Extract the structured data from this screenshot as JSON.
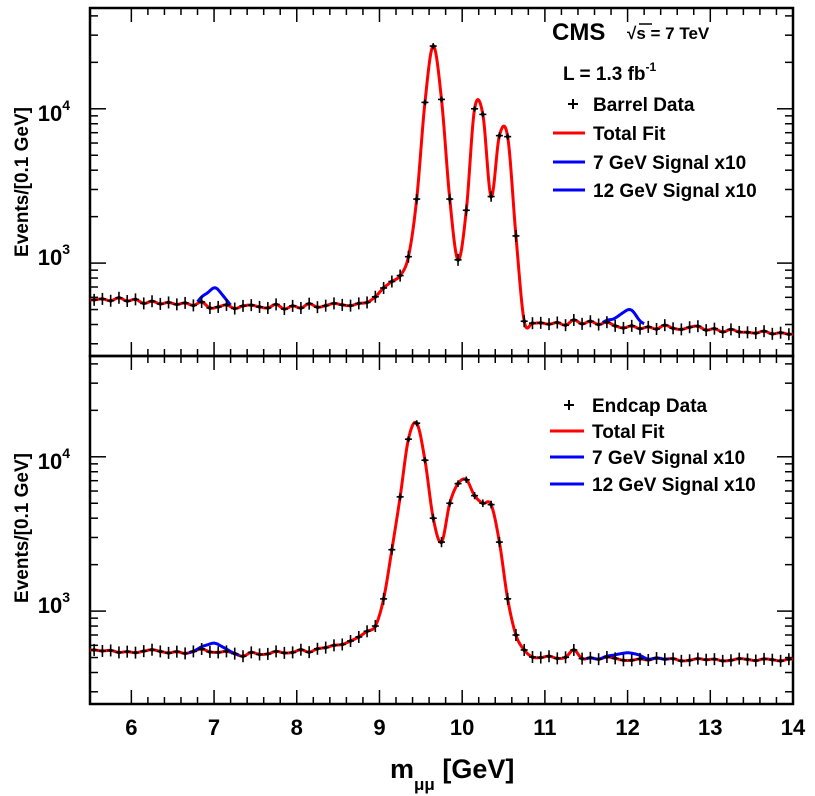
{
  "chart_data": [
    {
      "type": "line",
      "panel": "top",
      "ylabel": "Events/[0.1 GeV]",
      "xlabel": "",
      "xlim": [
        5.5,
        14
      ],
      "ylim": [
        250,
        45000
      ],
      "yscale": "log",
      "y_tick_labels": [
        "10",
        "10"
      ],
      "y_tick_exponents": [
        "3",
        "4"
      ],
      "x_tick_labels": [],
      "annotations": {
        "experiment": "CMS",
        "energy_sqrt": "√s",
        "energy_value": " = 7 TeV",
        "lumi_prefix": "L = 1.3 fb",
        "lumi_exp": "-1"
      },
      "legend": {
        "placement": "top-right",
        "entries": [
          "Barrel Data",
          "Total Fit",
          "7 GeV Signal x10",
          "12 GeV Signal x10"
        ]
      },
      "series": [
        {
          "name": "Barrel Data",
          "kind": "points",
          "x": [
            5.55,
            5.65,
            5.75,
            5.85,
            5.95,
            6.05,
            6.15,
            6.25,
            6.35,
            6.45,
            6.55,
            6.65,
            6.75,
            6.85,
            6.95,
            7.05,
            7.15,
            7.25,
            7.35,
            7.45,
            7.55,
            7.65,
            7.75,
            7.85,
            7.95,
            8.05,
            8.15,
            8.25,
            8.35,
            8.45,
            8.55,
            8.65,
            8.75,
            8.85,
            8.95,
            9.05,
            9.15,
            9.25,
            9.35,
            9.45,
            9.55,
            9.65,
            9.75,
            9.85,
            9.95,
            10.05,
            10.15,
            10.25,
            10.35,
            10.45,
            10.55,
            10.65,
            10.75,
            10.85,
            10.95,
            11.05,
            11.15,
            11.25,
            11.35,
            11.45,
            11.55,
            11.65,
            11.75,
            11.85,
            11.95,
            12.05,
            12.15,
            12.25,
            12.35,
            12.45,
            12.55,
            12.65,
            12.75,
            12.85,
            12.95,
            13.05,
            13.15,
            13.25,
            13.35,
            13.45,
            13.55,
            13.65,
            13.75,
            13.85,
            13.95
          ],
          "y": [
            578,
            586,
            570,
            596,
            568,
            582,
            548,
            566,
            544,
            556,
            540,
            552,
            532,
            560,
            512,
            520,
            536,
            508,
            528,
            534,
            520,
            512,
            540,
            504,
            528,
            512,
            546,
            518,
            530,
            548,
            536,
            530,
            548,
            556,
            605,
            690,
            760,
            830,
            1100,
            2600,
            11000,
            25500,
            11500,
            2600,
            1050,
            2200,
            10000,
            9200,
            2700,
            6700,
            6600,
            1500,
            420,
            408,
            410,
            402,
            412,
            396,
            428,
            404,
            420,
            400,
            414,
            392,
            380,
            392,
            376,
            386,
            374,
            396,
            378,
            372,
            384,
            390,
            368,
            376,
            358,
            372,
            358,
            356,
            352,
            362,
            348,
            354,
            346
          ]
        },
        {
          "name": "Total Fit",
          "kind": "fit",
          "color": "#ff0000"
        },
        {
          "name": "7 GeV Signal x10",
          "kind": "signal",
          "color": "#0000ff",
          "mass": 7.0,
          "range": [
            6.8,
            7.2
          ]
        },
        {
          "name": "12 GeV Signal x10",
          "kind": "signal",
          "color": "#0000ff",
          "mass": 12.0,
          "range": [
            11.7,
            12.2
          ]
        }
      ]
    },
    {
      "type": "line",
      "panel": "bottom",
      "ylabel": "Events/[0.1 GeV]",
      "xlabel": "m",
      "xlabel_sub": "μμ",
      "xlabel_suffix": " [GeV]",
      "xlim": [
        5.5,
        14
      ],
      "ylim": [
        250,
        45000
      ],
      "yscale": "log",
      "y_tick_labels": [
        "10",
        "10"
      ],
      "y_tick_exponents": [
        "3",
        "4"
      ],
      "x_tick_labels": [
        "6",
        "7",
        "8",
        "9",
        "10",
        "11",
        "12",
        "13",
        "14"
      ],
      "legend": {
        "placement": "top-right",
        "entries": [
          "Endcap Data",
          "Total Fit",
          "7 GeV Signal x10",
          "12 GeV Signal x10"
        ]
      },
      "series": [
        {
          "name": "Endcap Data",
          "kind": "points",
          "x": [
            5.55,
            5.65,
            5.75,
            5.85,
            5.95,
            6.05,
            6.15,
            6.25,
            6.35,
            6.45,
            6.55,
            6.65,
            6.75,
            6.85,
            6.95,
            7.05,
            7.15,
            7.25,
            7.35,
            7.45,
            7.55,
            7.65,
            7.75,
            7.85,
            7.95,
            8.05,
            8.15,
            8.25,
            8.35,
            8.45,
            8.55,
            8.65,
            8.75,
            8.85,
            8.95,
            9.05,
            9.15,
            9.25,
            9.35,
            9.45,
            9.55,
            9.65,
            9.75,
            9.85,
            9.95,
            10.05,
            10.15,
            10.25,
            10.35,
            10.45,
            10.55,
            10.65,
            10.75,
            10.85,
            10.95,
            11.05,
            11.15,
            11.25,
            11.35,
            11.45,
            11.55,
            11.65,
            11.75,
            11.85,
            11.95,
            12.05,
            12.15,
            12.25,
            12.35,
            12.45,
            12.55,
            12.65,
            12.75,
            12.85,
            12.95,
            13.05,
            13.15,
            13.25,
            13.35,
            13.45,
            13.55,
            13.65,
            13.75,
            13.85,
            13.95
          ],
          "y": [
            560,
            552,
            556,
            540,
            546,
            538,
            550,
            562,
            548,
            536,
            546,
            532,
            548,
            568,
            544,
            540,
            548,
            530,
            510,
            540,
            524,
            528,
            548,
            536,
            540,
            562,
            542,
            570,
            580,
            600,
            608,
            640,
            680,
            740,
            800,
            1200,
            2500,
            5500,
            13000,
            16500,
            9500,
            4000,
            2800,
            5000,
            6700,
            7100,
            5600,
            5000,
            4900,
            2800,
            1200,
            700,
            560,
            504,
            500,
            510,
            494,
            502,
            560,
            492,
            498,
            488,
            504,
            494,
            480,
            480,
            490,
            482,
            496,
            488,
            492,
            476,
            480,
            492,
            484,
            488,
            476,
            480,
            492,
            486,
            478,
            490,
            484,
            476,
            488
          ]
        },
        {
          "name": "Total Fit",
          "kind": "fit",
          "color": "#ff0000"
        },
        {
          "name": "7 GeV Signal x10",
          "kind": "signal",
          "color": "#0000ff",
          "mass": 7.0,
          "range": [
            6.7,
            7.3
          ]
        },
        {
          "name": "12 GeV Signal x10",
          "kind": "signal",
          "color": "#0000ff",
          "mass": 12.0,
          "range": [
            11.5,
            12.5
          ]
        }
      ]
    }
  ]
}
